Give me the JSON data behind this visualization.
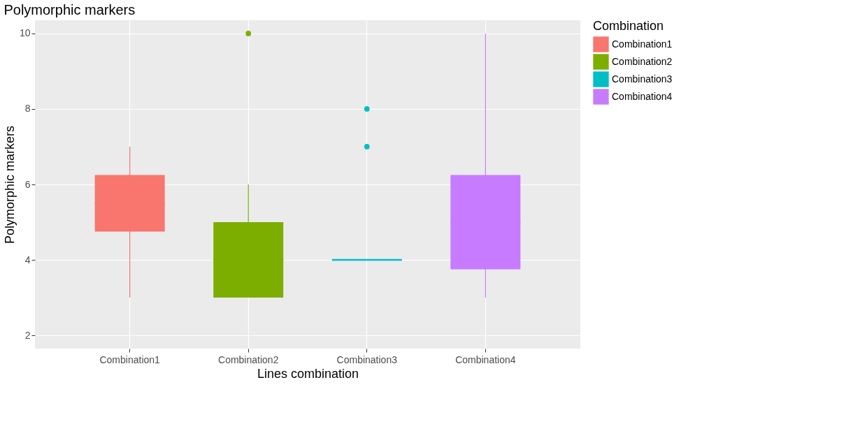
{
  "chart_data": {
    "type": "box",
    "title": "Polymorphic markers",
    "xlabel": "Lines combination",
    "ylabel": "Polymorphic markers",
    "legend_title": "Combination",
    "categories": [
      "Combination1",
      "Combination2",
      "Combination3",
      "Combination4"
    ],
    "series": [
      {
        "name": "Combination1",
        "color": "#f8766d",
        "boxes": [
          {
            "low": 3,
            "q1": 4.75,
            "median": 5.5,
            "q3": 6.25,
            "high": 7
          },
          null,
          null,
          null
        ]
      },
      {
        "name": "Combination2",
        "color": "#7cae00",
        "boxes": [
          null,
          {
            "low": 3,
            "q1": 3,
            "median": 4,
            "q3": 5,
            "high": 6,
            "outliers": [
              10
            ]
          },
          null,
          null
        ]
      },
      {
        "name": "Combination3",
        "color": "#00bfc4",
        "boxes": [
          null,
          null,
          {
            "low": 4,
            "q1": 4,
            "median": 4,
            "q3": 4,
            "high": 4,
            "outliers": [
              7,
              8
            ]
          },
          null
        ]
      },
      {
        "name": "Combination4",
        "color": "#c77cff",
        "boxes": [
          null,
          null,
          null,
          {
            "low": 3,
            "q1": 3.75,
            "median": 5,
            "q3": 6.25,
            "high": 10
          }
        ]
      }
    ],
    "ylim": [
      1.65,
      10.35
    ],
    "yticks": [
      2,
      4,
      6,
      8,
      10
    ],
    "grid": true,
    "legend": "right"
  }
}
